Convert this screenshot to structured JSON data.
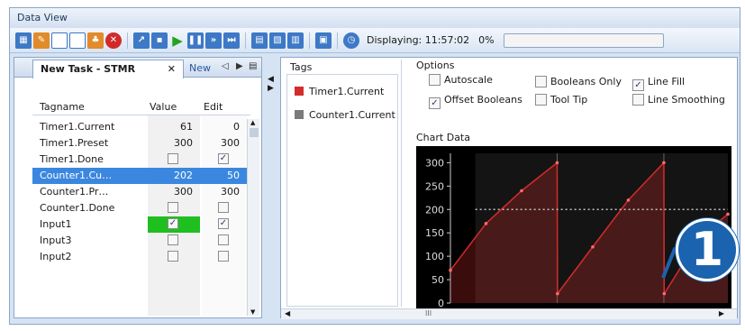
{
  "window": {
    "title": "Data View"
  },
  "toolbar": {
    "status_label": "Displaying: 11:57:02",
    "percent_label": "0%",
    "progress_fraction": 0.0
  },
  "left": {
    "tab_active": "New Task - STMR",
    "tab_close": "✕",
    "tab_next": "New",
    "headers": {
      "tagname": "Tagname",
      "value": "Value",
      "edit": "Edit"
    },
    "rows": [
      {
        "tagname": "Timer1.Current",
        "value": "61",
        "edit": "0"
      },
      {
        "tagname": "Timer1.Preset",
        "value": "300",
        "edit": "300"
      },
      {
        "tagname": "Timer1.Done",
        "value_check": false,
        "edit_check": true
      },
      {
        "tagname": "Counter1.Cu…",
        "value": "202",
        "edit": "50"
      },
      {
        "tagname": "Counter1.Pr…",
        "value": "300",
        "edit": "300"
      },
      {
        "tagname": "Counter1.Done",
        "value_check": false,
        "edit_check": false
      },
      {
        "tagname": "Input1",
        "value_check": true,
        "edit_check": true
      },
      {
        "tagname": "Input3",
        "value_check": false,
        "edit_check": false
      },
      {
        "tagname": "Input2",
        "value_check": false,
        "edit_check": false
      }
    ]
  },
  "right": {
    "tags_title": "Tags",
    "tags": [
      {
        "label": "Timer1.Current",
        "color": "#d42b2b"
      },
      {
        "label": "Counter1.Current",
        "color": "#7a7a7a"
      }
    ],
    "options_title": "Options",
    "options": {
      "autoscale": {
        "label": "Autoscale",
        "checked": false
      },
      "booleans_only": {
        "label": "Booleans Only",
        "checked": false
      },
      "line_fill": {
        "label": "Line Fill",
        "checked": true
      },
      "offset_booleans": {
        "label": "Offset Booleans",
        "checked": true
      },
      "tool_tip": {
        "label": "Tool Tip",
        "checked": false
      },
      "line_smoothing": {
        "label": "Line Smoothing",
        "checked": false
      }
    },
    "chart_title": "Chart Data",
    "scroll_label": "III"
  },
  "chart_data": {
    "type": "line",
    "title": "",
    "xlabel": "",
    "ylabel": "",
    "ylim": [
      0,
      320
    ],
    "yticks": [
      0,
      50,
      100,
      150,
      200,
      250,
      300
    ],
    "grid": true,
    "series": [
      {
        "name": "Timer1.Current",
        "color": "#d42b2b",
        "x": [
          0,
          1,
          2,
          3,
          3.01,
          4,
          5,
          6,
          6.01,
          7,
          7.8
        ],
        "values": [
          70,
          170,
          240,
          300,
          20,
          120,
          220,
          300,
          20,
          140,
          190
        ]
      },
      {
        "name": "Counter1.Current",
        "color": "#bfbfbf",
        "x": [
          0.7,
          7.8
        ],
        "values": [
          200,
          200
        ]
      }
    ],
    "callout": "1"
  }
}
